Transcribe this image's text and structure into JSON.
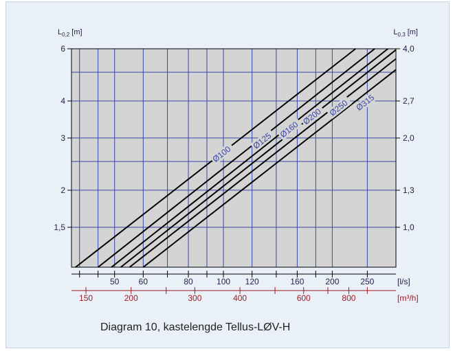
{
  "caption": "Diagram 10, kastelengde Tellus-LØV-H",
  "colors": {
    "plot_bg": "#d4d4d4",
    "grid": "#3a46a8",
    "line": "#000000",
    "text": "#1f1f4a",
    "label_blue": "#3a46a8",
    "red_axis": "#a01a22",
    "panel_bg": "#eaf0f8"
  },
  "chart_data": {
    "type": "line",
    "title": "",
    "xscale": "log",
    "yscale": "log",
    "y_left_label": "L0,2 [m]",
    "y_right_label": "L0,3 [m]",
    "y_left_ticks": [
      "6",
      "4",
      "3",
      "2",
      "1,5"
    ],
    "y_right_ticks": [
      "4,0",
      "2,7",
      "2,0",
      "1,3",
      "1,0"
    ],
    "x_ls_label": "[l/s]",
    "x_ls_ticks": [
      "50",
      "60",
      "80",
      "100",
      "120",
      "160",
      "200",
      "250"
    ],
    "x_m3h_label": "[m³/h]",
    "x_m3h_ticks": [
      "150",
      "200",
      "300",
      "400",
      "600",
      "800"
    ],
    "xlim_ls": [
      38,
      300
    ],
    "ylim_m": [
      1.1,
      6
    ],
    "series": [
      {
        "name": "Ø100",
        "x": [
          39,
          232
        ],
        "y": [
          1.1,
          6.0
        ]
      },
      {
        "name": "Ø125",
        "x": [
          45,
          262
        ],
        "y": [
          1.1,
          6.0
        ]
      },
      {
        "name": "Ø160",
        "x": [
          49,
          285
        ],
        "y": [
          1.1,
          6.0
        ]
      },
      {
        "name": "Ø200",
        "x": [
          52,
          300
        ],
        "y": [
          1.1,
          5.95
        ]
      },
      {
        "name": "Ø250",
        "x": [
          55,
          300
        ],
        "y": [
          1.1,
          5.55
        ]
      },
      {
        "name": "Ø315",
        "x": [
          60,
          300
        ],
        "y": [
          1.1,
          5.1
        ]
      }
    ]
  }
}
